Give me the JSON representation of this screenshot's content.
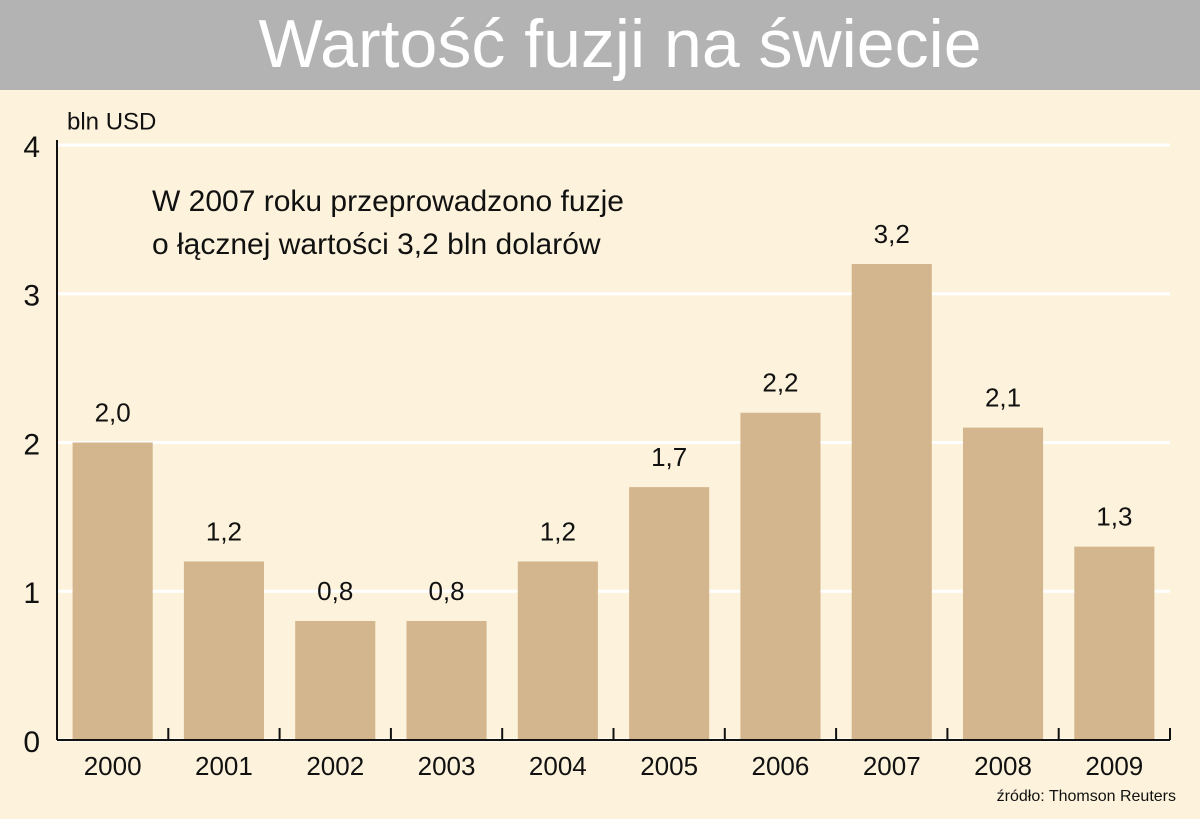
{
  "chart_data": {
    "type": "bar",
    "title": "Wartość fuzji na świecie",
    "y_label": "bln USD",
    "annotation": [
      "W 2007 roku przeprowadzono fuzje",
      "o łącznej wartości 3,2 bln dolarów"
    ],
    "source": "źródło: Thomson Reuters",
    "categories": [
      "2000",
      "2001",
      "2002",
      "2003",
      "2004",
      "2005",
      "2006",
      "2007",
      "2008",
      "2009"
    ],
    "values": [
      2.0,
      1.2,
      0.8,
      0.8,
      1.2,
      1.7,
      2.2,
      3.2,
      2.1,
      1.3
    ],
    "value_labels": [
      "2,0",
      "1,2",
      "0,8",
      "0,8",
      "1,2",
      "1,7",
      "2,2",
      "3,2",
      "2,1",
      "1,3"
    ],
    "color": "#d4b68e",
    "ylim": [
      0,
      4
    ],
    "yticks": [
      0,
      1,
      2,
      3,
      4
    ],
    "grid": true
  }
}
